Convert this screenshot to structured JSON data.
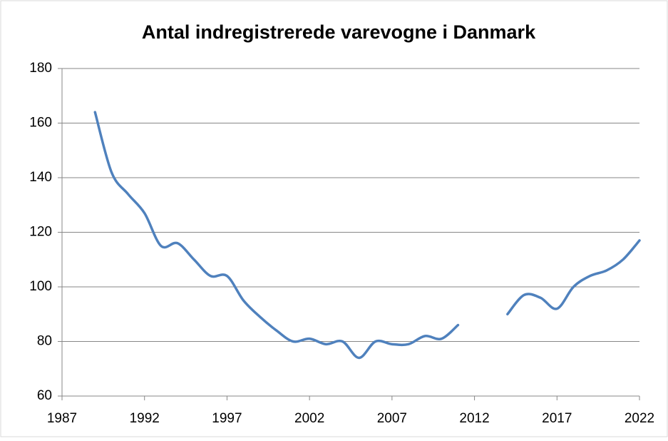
{
  "chart_data": {
    "type": "line",
    "title": "Antal indregistrerede varevogne i Danmark",
    "x": [
      1989,
      1990,
      1991,
      1992,
      1993,
      1994,
      1995,
      1996,
      1997,
      1998,
      1999,
      2000,
      2001,
      2002,
      2003,
      2004,
      2005,
      2006,
      2007,
      2008,
      2009,
      2010,
      2011,
      2012,
      2013,
      2014,
      2015,
      2016,
      2017,
      2018,
      2019,
      2020,
      2021,
      2022
    ],
    "series": [
      {
        "name": "Antal indregistrerede varevogne",
        "color": "#4f81bd",
        "values": [
          164,
          142,
          134,
          127,
          115,
          116,
          110,
          104,
          104,
          95,
          89,
          84,
          80,
          81,
          79,
          80,
          74,
          80,
          79,
          79,
          82,
          81,
          86,
          null,
          null,
          90,
          97,
          96,
          92,
          100,
          104,
          106,
          110,
          117
        ]
      }
    ],
    "xlim": [
      1987,
      2022
    ],
    "xticks": [
      1987,
      1992,
      1997,
      2002,
      2007,
      2012,
      2017,
      2022
    ],
    "ylim": [
      60,
      180
    ],
    "yticks": [
      60,
      80,
      100,
      120,
      140,
      160,
      180
    ],
    "grid": true
  }
}
